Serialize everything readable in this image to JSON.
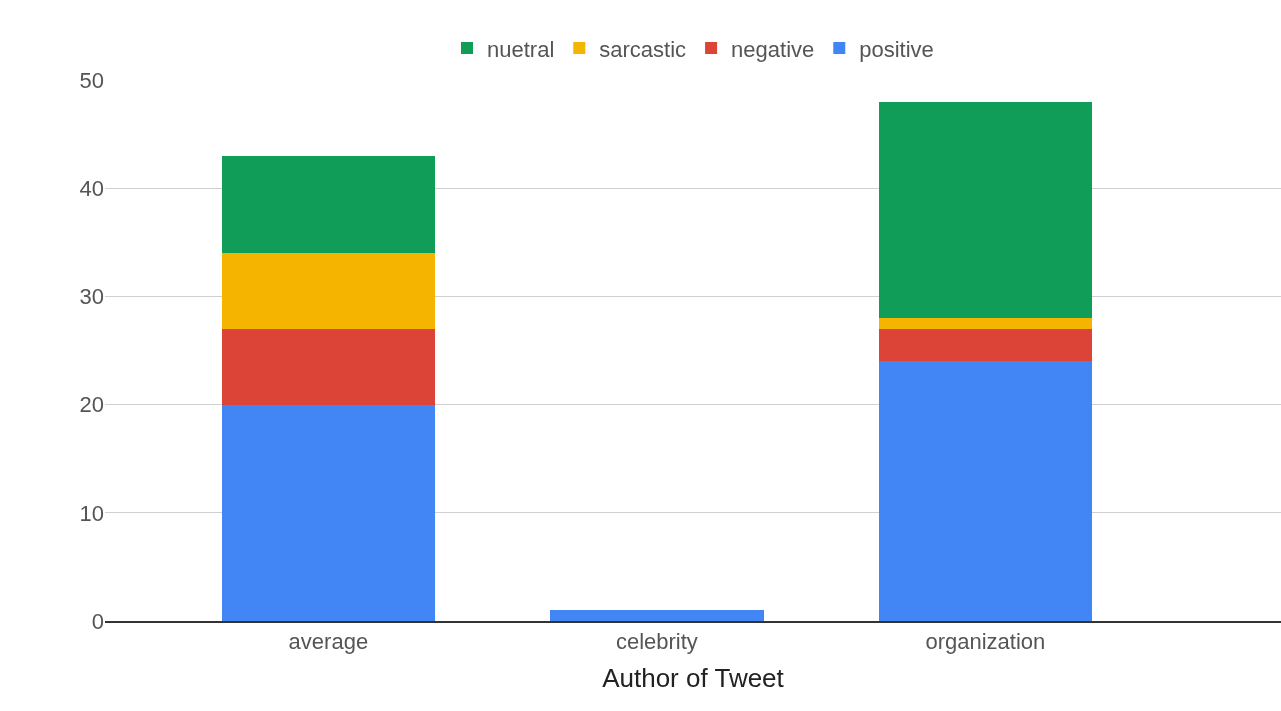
{
  "chart_data": {
    "type": "bar",
    "stacked": true,
    "xlabel": "Author of Tweet",
    "categories": [
      "average",
      "celebrity",
      "organization"
    ],
    "series": [
      {
        "name": "positive",
        "color": "#4285f4",
        "values": [
          20,
          1,
          24
        ]
      },
      {
        "name": "negative",
        "color": "#db4437",
        "values": [
          7,
          0,
          3
        ]
      },
      {
        "name": "sarcastic",
        "color": "#f4b400",
        "values": [
          7,
          0,
          1
        ]
      },
      {
        "name": "nuetral",
        "color": "#0f9d58",
        "values": [
          9,
          0,
          20
        ]
      }
    ],
    "ylim": [
      0,
      50
    ],
    "yticks": [
      0,
      10,
      20,
      30,
      40,
      50
    ],
    "grid": "y",
    "legend": "top"
  }
}
